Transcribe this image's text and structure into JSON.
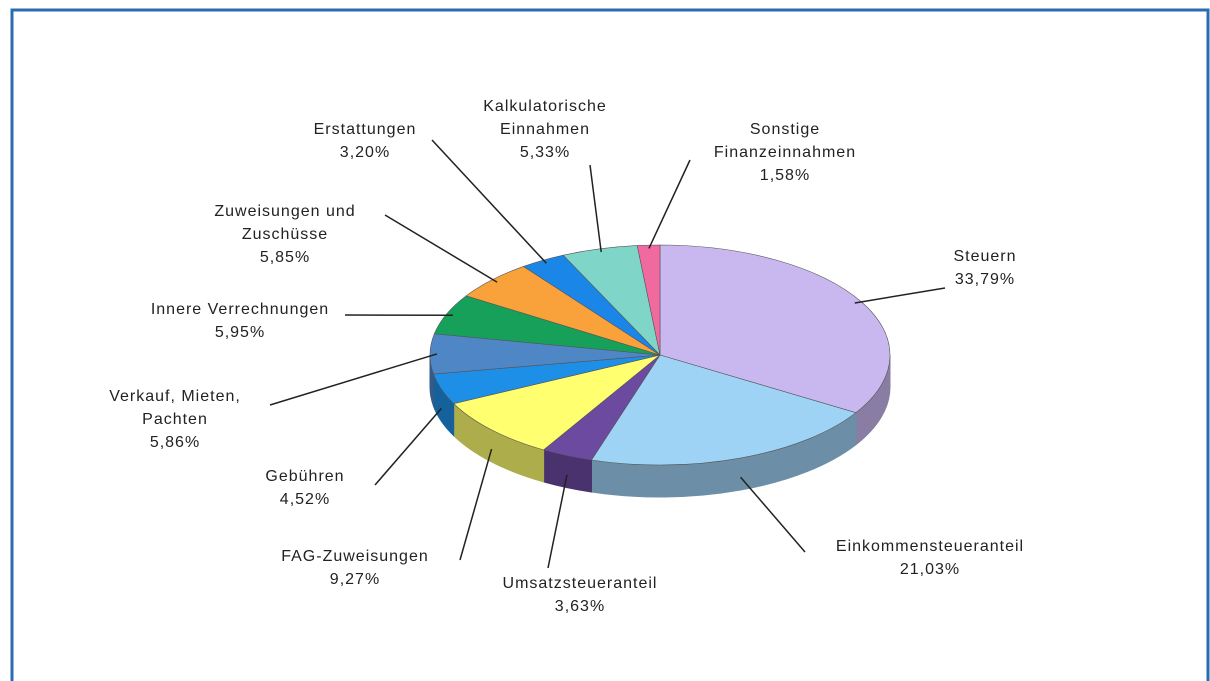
{
  "chart_data": {
    "type": "pie3d",
    "categories": [
      "Steuern",
      "Einkommensteueranteil",
      "Umsatzsteueranteil",
      "FAG-Zuweisungen",
      "Gebühren",
      "Verkauf, Mieten,\nPachten",
      "Innere Verrechnungen",
      "Zuweisungen und\nZuschüsse",
      "Erstattungen",
      "Kalkulatorische\nEinnahmen",
      "Sonstige\nFinanzeinnahmen"
    ],
    "values": [
      33.79,
      21.03,
      3.63,
      9.27,
      4.52,
      5.86,
      5.95,
      5.85,
      3.2,
      5.33,
      1.58
    ],
    "value_labels": [
      "33,79%",
      "21,03%",
      "3,63%",
      "9,27%",
      "4,52%",
      "5,86%",
      "5,95%",
      "5,85%",
      "3,20%",
      "5,33%",
      "1,58%"
    ],
    "colors": [
      "#c9b8ef",
      "#9fd3f5",
      "#6b4aa0",
      "#ffff70",
      "#1e8fe6",
      "#4f86c6",
      "#16a05a",
      "#f9a13a",
      "#1a86e8",
      "#7fd6c8",
      "#f06aa0"
    ]
  }
}
